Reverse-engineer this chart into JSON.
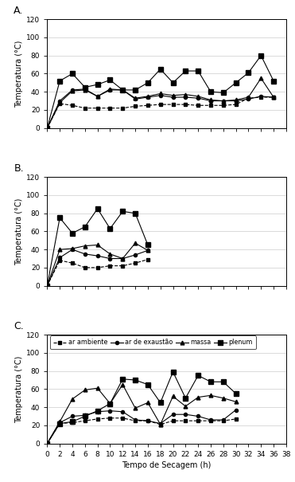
{
  "ylabel": "Temperatura (°C)",
  "xlabel": "Tempo de Secagem (h)",
  "ylim": [
    0,
    120
  ],
  "yticks": [
    0,
    20,
    40,
    60,
    80,
    100,
    120
  ],
  "xticks": [
    0,
    2,
    4,
    6,
    8,
    10,
    12,
    14,
    16,
    18,
    20,
    22,
    24,
    26,
    28,
    30,
    32,
    34,
    36,
    38
  ],
  "A_x": [
    0,
    2,
    4,
    6,
    8,
    10,
    12,
    14,
    16,
    18,
    20,
    22,
    24,
    26,
    28,
    30,
    32,
    34,
    36
  ],
  "A_ambiente": [
    0,
    27,
    25,
    22,
    22,
    22,
    22,
    24,
    25,
    26,
    26,
    26,
    25,
    25,
    25,
    26,
    33,
    34,
    34
  ],
  "A_exaustao": [
    0,
    30,
    42,
    43,
    35,
    42,
    42,
    32,
    34,
    36,
    34,
    34,
    33,
    30,
    30,
    30,
    32,
    35,
    34
  ],
  "A_plenum": [
    0,
    52,
    60,
    45,
    48,
    53,
    42,
    42,
    50,
    65,
    50,
    63,
    63,
    40,
    39,
    50,
    61,
    80,
    52
  ],
  "A_massa": [
    0,
    28,
    41,
    42,
    35,
    43,
    42,
    33,
    35,
    38,
    36,
    37,
    35,
    31,
    30,
    31,
    34,
    55,
    34
  ],
  "B_x": [
    0,
    2,
    4,
    6,
    8,
    10,
    12,
    14,
    16
  ],
  "B_ambiente": [
    0,
    28,
    25,
    20,
    20,
    22,
    22,
    25,
    29
  ],
  "B_exaustao": [
    0,
    31,
    40,
    35,
    33,
    30,
    30,
    34,
    39
  ],
  "B_plenum": [
    0,
    75,
    58,
    65,
    85,
    63,
    82,
    80,
    45
  ],
  "B_massa": [
    0,
    40,
    41,
    44,
    45,
    35,
    30,
    47,
    39
  ],
  "C_x": [
    0,
    2,
    4,
    6,
    8,
    10,
    12,
    14,
    16,
    18,
    20,
    22,
    24,
    26,
    28,
    30
  ],
  "C_ambiente": [
    0,
    22,
    23,
    25,
    27,
    28,
    28,
    25,
    25,
    21,
    25,
    25,
    25,
    25,
    25,
    27
  ],
  "C_exaustao": [
    0,
    23,
    30,
    31,
    35,
    36,
    35,
    26,
    25,
    22,
    32,
    32,
    30,
    26,
    26,
    37
  ],
  "C_massa": [
    0,
    24,
    49,
    59,
    61,
    44,
    65,
    39,
    45,
    21,
    52,
    41,
    51,
    53,
    50,
    46
  ],
  "C_plenum": [
    0,
    22,
    24,
    30,
    36,
    44,
    71,
    70,
    65,
    45,
    79,
    50,
    75,
    68,
    68,
    55
  ],
  "legend_labels": [
    "ar ambiente",
    "ar de exaustão",
    "massa",
    "plenum"
  ],
  "background": "#ffffff"
}
